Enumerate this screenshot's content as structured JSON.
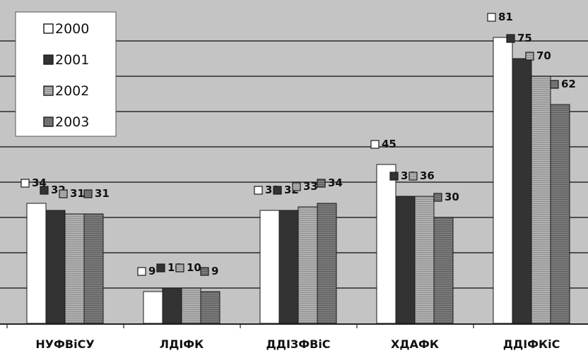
{
  "chart_data": {
    "type": "bar",
    "categories": [
      "НУФВіСУ",
      "ЛДІФК",
      "ДДІЗФВіС",
      "ХДАФК",
      "ДДІФКіС"
    ],
    "series": [
      {
        "name": "2000",
        "values": [
          34,
          9,
          32,
          45,
          81
        ],
        "labels": [
          "34",
          "9",
          "32",
          "45",
          "81"
        ]
      },
      {
        "name": "2001",
        "values": [
          32,
          10,
          32,
          36,
          75
        ],
        "labels": [
          "32",
          "10",
          "32",
          "36",
          "75"
        ]
      },
      {
        "name": "2002",
        "values": [
          31,
          10,
          33,
          36,
          70
        ],
        "labels": [
          "31",
          "10",
          "33",
          "36",
          "70"
        ]
      },
      {
        "name": "2003",
        "values": [
          31,
          9,
          34,
          30,
          62
        ],
        "labels": [
          "31",
          "9",
          "34",
          "30",
          "62"
        ]
      }
    ],
    "ylim": [
      0,
      90
    ],
    "grid": true,
    "legend": "top-left",
    "colors": {
      "plot_bg": "#c4c4c4",
      "axis_bg": "#ffffff",
      "grid": "#2a2a2a",
      "series": [
        "#ffffff",
        "#333333",
        "#a9a9a9",
        "#747474"
      ]
    }
  }
}
